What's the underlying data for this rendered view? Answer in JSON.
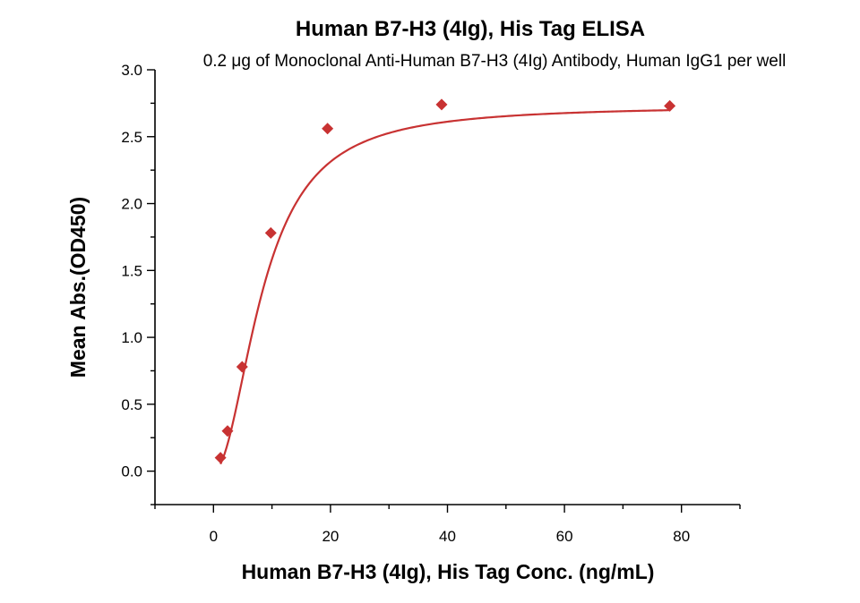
{
  "colors": {
    "series": "#c83232",
    "axis": "#000000"
  },
  "chart_data": {
    "type": "scatter",
    "title": "Human B7-H3 (4Ig), His Tag ELISA",
    "subtitle": "0.2 μg of Monoclonal Anti-Human B7-H3 (4Ig) Antibody, Human IgG1 per well",
    "xlabel": "Human B7-H3 (4Ig), His Tag Conc. (ng/mL)",
    "ylabel": "Mean Abs.(OD450)",
    "xlim": [
      -10,
      90
    ],
    "ylim": [
      -0.25,
      3.0
    ],
    "xticks": [
      0,
      20,
      40,
      60,
      80
    ],
    "xtick_labels": [
      "0",
      "20",
      "40",
      "60",
      "80"
    ],
    "yticks": [
      0.0,
      0.5,
      1.0,
      1.5,
      2.0,
      2.5,
      3.0
    ],
    "ytick_labels": [
      "0.0",
      "0.5",
      "1.0",
      "1.5",
      "2.0",
      "2.5",
      "3.0"
    ],
    "grid": false,
    "marker": "diamond",
    "series": [
      {
        "x": [
          1.2,
          2.4,
          4.9,
          9.8,
          19.5,
          39,
          78
        ],
        "y": [
          0.1,
          0.3,
          0.78,
          1.78,
          2.56,
          2.74,
          2.73
        ]
      }
    ],
    "fit_curve": {
      "type": "four-parameter logistic",
      "bottom": 0.0,
      "top": 2.73,
      "ec50": 8.5,
      "hill": 2.0
    }
  }
}
